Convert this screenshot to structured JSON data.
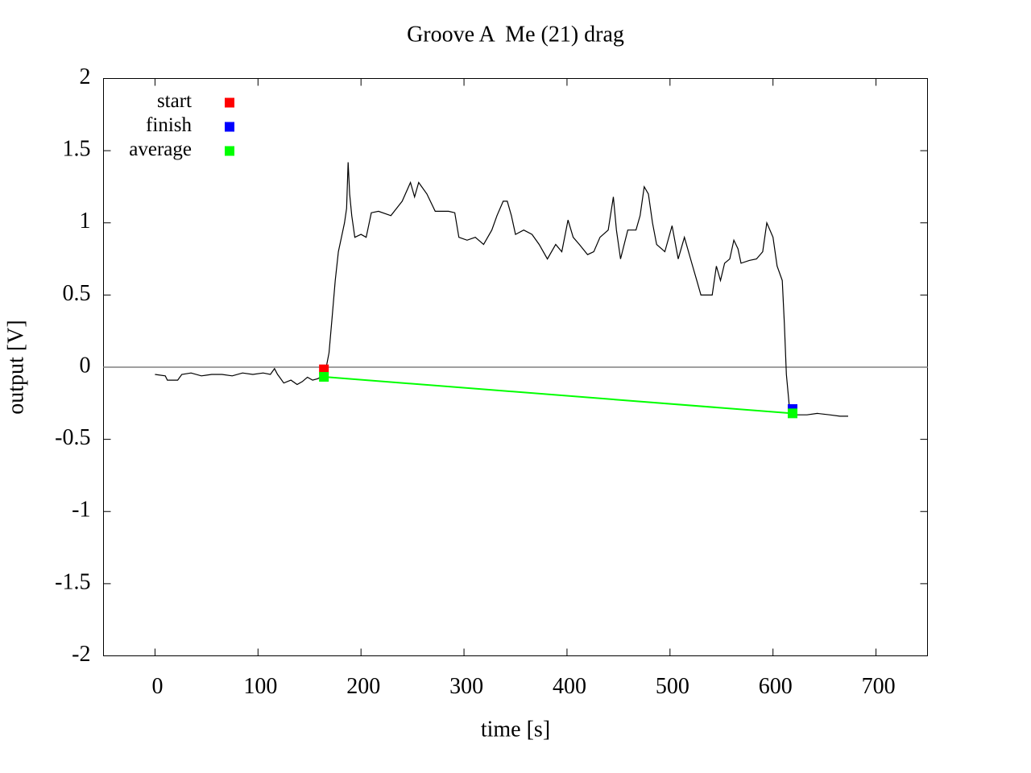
{
  "chart_data": {
    "type": "line",
    "title": "Groove A  Me (21) drag",
    "xlabel": "time [s]",
    "ylabel": "output [V]",
    "xlim": [
      -50,
      750
    ],
    "ylim": [
      -2,
      2
    ],
    "xticks": [
      0,
      100,
      200,
      300,
      400,
      500,
      600,
      700
    ],
    "yticks": [
      -2,
      -1.5,
      -1,
      -0.5,
      0,
      0.5,
      1,
      1.5,
      2
    ],
    "zeroaxis": true,
    "zeroaxis_color": "#a0a0a0",
    "legend": "top-left",
    "series": [
      {
        "color": "#000000",
        "style": "line",
        "x": [
          0,
          10,
          12,
          22,
          26,
          35,
          45,
          55,
          65,
          75,
          85,
          95,
          105,
          112,
          116,
          119,
          121,
          125,
          132,
          138,
          143,
          148,
          153,
          158,
          163,
          166,
          169,
          172,
          175,
          178,
          181,
          184,
          186,
          187.5,
          189,
          191,
          194,
          200,
          205,
          210,
          217,
          229,
          240,
          248,
          252,
          256,
          264,
          272,
          285,
          291,
          295,
          303,
          311,
          319,
          327,
          332,
          338,
          342,
          346,
          350,
          358,
          366,
          373,
          381,
          389,
          395,
          401,
          406,
          412,
          420,
          426,
          432,
          440,
          445,
          448,
          452,
          459,
          467,
          471,
          475,
          479,
          483,
          487,
          495,
          502,
          508,
          514,
          522,
          526,
          530,
          536,
          541,
          545,
          549,
          553,
          558,
          562,
          566,
          569,
          577,
          584,
          590,
          594,
          597,
          600,
          604,
          609,
          611,
          613,
          616,
          619,
          623,
          633,
          643,
          655,
          665,
          673
        ],
        "values": [
          -0.05,
          -0.06,
          -0.09,
          -0.09,
          -0.05,
          -0.04,
          -0.06,
          -0.05,
          -0.05,
          -0.06,
          -0.04,
          -0.05,
          -0.04,
          -0.05,
          -0.01,
          -0.05,
          -0.07,
          -0.11,
          -0.09,
          -0.12,
          -0.1,
          -0.07,
          -0.09,
          -0.08,
          -0.06,
          -0.01,
          0.1,
          0.35,
          0.6,
          0.8,
          0.9,
          1.0,
          1.1,
          1.42,
          1.2,
          1.05,
          0.9,
          0.92,
          0.9,
          1.07,
          1.08,
          1.05,
          1.15,
          1.28,
          1.18,
          1.28,
          1.2,
          1.08,
          1.08,
          1.07,
          0.9,
          0.88,
          0.9,
          0.85,
          0.95,
          1.05,
          1.15,
          1.15,
          1.05,
          0.92,
          0.95,
          0.92,
          0.85,
          0.75,
          0.85,
          0.8,
          1.02,
          0.9,
          0.85,
          0.78,
          0.8,
          0.9,
          0.95,
          1.18,
          0.95,
          0.75,
          0.95,
          0.95,
          1.05,
          1.25,
          1.2,
          1.0,
          0.85,
          0.8,
          0.98,
          0.75,
          0.9,
          0.7,
          0.6,
          0.5,
          0.5,
          0.5,
          0.7,
          0.6,
          0.72,
          0.75,
          0.88,
          0.82,
          0.72,
          0.74,
          0.75,
          0.8,
          1.0,
          0.95,
          0.9,
          0.7,
          0.6,
          0.3,
          -0.05,
          -0.28,
          -0.33,
          -0.33,
          -0.33,
          -0.32,
          -0.33,
          -0.34,
          -0.34
        ]
      },
      {
        "name": "start",
        "color": "#ff0000",
        "style": "points",
        "x": [
          164
        ],
        "values": [
          -0.015
        ]
      },
      {
        "name": "finish",
        "color": "#0000ff",
        "style": "points",
        "x": [
          619
        ],
        "values": [
          -0.29
        ]
      },
      {
        "name": "average",
        "color": "#00ff00",
        "style": "linespoints",
        "x": [
          164,
          619
        ],
        "values": [
          -0.067,
          -0.32
        ]
      }
    ]
  }
}
